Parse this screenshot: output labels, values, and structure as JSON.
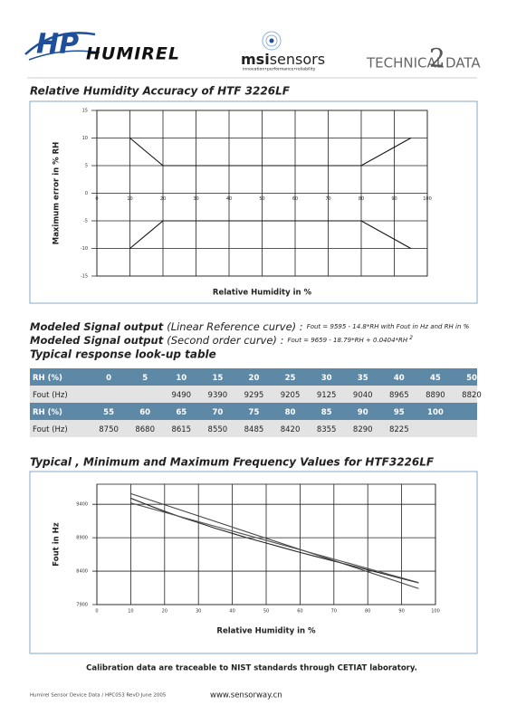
{
  "header": {
    "logo_mark": "HP",
    "brand": "HUMIREL",
    "msi_brand": "msi",
    "msi_brand_suffix": "sensors",
    "msi_tagline": "innovation•performance•reliability",
    "technical": "TECHNICAL",
    "page_number": "2",
    "data": "DATA"
  },
  "chart_data": [
    {
      "type": "line",
      "title": "Relative Humidity Accuracy of HTF 3226LF",
      "x_label": "Relative Humidity in %",
      "y_label": "Maximum error in % RH",
      "xlim": [
        0,
        100
      ],
      "ylim": [
        -15,
        15
      ],
      "xticks": [
        0,
        10,
        20,
        30,
        40,
        50,
        60,
        70,
        80,
        90,
        100
      ],
      "yticks": [
        -15,
        -10,
        -5,
        0,
        5,
        10,
        15
      ],
      "grid": true,
      "series": [
        {
          "color": "#111111",
          "x": [
            10,
            20,
            80,
            95
          ],
          "values": [
            10,
            5,
            5,
            10
          ]
        },
        {
          "color": "#111111",
          "x": [
            10,
            20,
            80,
            95
          ],
          "values": [
            -10,
            -5,
            -5,
            -10
          ]
        }
      ]
    },
    {
      "type": "line",
      "title": "Typical , Minimum and Maximum Frequency Values for HTF3226LF",
      "x_label": "Relative Humidity in %",
      "y_label": "Fout in Hz",
      "xlim": [
        0,
        100
      ],
      "ylim": [
        7900,
        9700
      ],
      "xticks": [
        0,
        10,
        20,
        30,
        40,
        50,
        60,
        70,
        80,
        90,
        100
      ],
      "yticks": [
        7900,
        8400,
        8900,
        9400
      ],
      "grid": true,
      "series": [
        {
          "color": "#222222",
          "x": [
            10,
            15,
            20,
            25,
            30,
            35,
            40,
            45,
            50,
            55,
            60,
            65,
            70,
            75,
            80,
            85,
            90,
            95
          ],
          "values": [
            9490,
            9390,
            9295,
            9205,
            9125,
            9040,
            8965,
            8890,
            8820,
            8750,
            8680,
            8615,
            8550,
            8485,
            8420,
            8355,
            8290,
            8225
          ]
        },
        {
          "color": "#444444",
          "x": [
            10,
            95
          ],
          "values": [
            9560,
            8140
          ]
        },
        {
          "color": "#555555",
          "x": [
            10,
            95
          ],
          "values": [
            9420,
            8230
          ]
        }
      ]
    }
  ],
  "signal": {
    "line1_bold": "Modeled Signal output",
    "line1_kind": "(Linear Reference curve) :",
    "line1_formula": "Fout = 9595 - 14.8*RH with Fout in Hz and RH in %",
    "line2_bold": "Modeled Signal output",
    "line2_kind": "(Second order curve) :",
    "line2_formula": "Fout = 9659 - 18.79*RH + 0.0404*RH",
    "line2_exponent": "2",
    "table_title": "Typical response look-up table"
  },
  "table": {
    "rows": [
      [
        "RH (%)",
        "0",
        "5",
        "10",
        "15",
        "20",
        "25",
        "30",
        "35",
        "40",
        "45",
        "50"
      ],
      [
        "Fout (Hz)",
        null,
        null,
        "9490",
        "9390",
        "9295",
        "9205",
        "9125",
        "9040",
        "8965",
        "8890",
        "8820"
      ],
      [
        "RH (%)",
        "55",
        "60",
        "65",
        "70",
        "75",
        "80",
        "85",
        "90",
        "95",
        "100",
        null
      ],
      [
        "Fout (Hz)",
        "8750",
        "8680",
        "8615",
        "8550",
        "8485",
        "8420",
        "8355",
        "8290",
        "8225",
        null,
        null
      ]
    ]
  },
  "footer": {
    "calibration": "Calibration data are traceable to NIST standards through CETIAT laboratory.",
    "doc_ref": "Humirel Sensor Device Data / HPC053 RevD June 2005",
    "website": "www.sensorway.cn"
  }
}
